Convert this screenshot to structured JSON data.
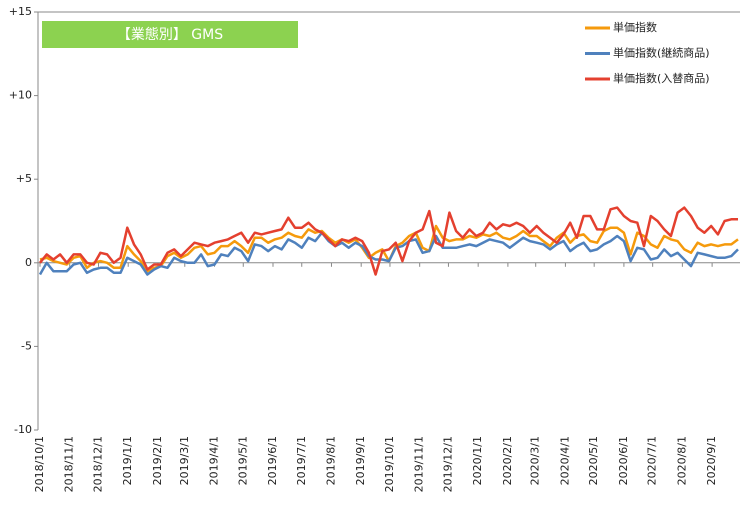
{
  "chart_data": {
    "type": "line",
    "title": "【業態別】 GMS",
    "x": [
      "2018/10/1",
      "2018/10/8",
      "2018/10/15",
      "2018/10/22",
      "2018/10/29",
      "2018/11/5",
      "2018/11/12",
      "2018/11/19",
      "2018/11/26",
      "2018/12/3",
      "2018/12/10",
      "2018/12/17",
      "2018/12/24",
      "2018/12/31",
      "2019/1/7",
      "2019/1/14",
      "2019/1/21",
      "2019/1/28",
      "2019/2/4",
      "2019/2/11",
      "2019/2/18",
      "2019/2/25",
      "2019/3/4",
      "2019/3/11",
      "2019/3/18",
      "2019/3/25",
      "2019/4/1",
      "2019/4/8",
      "2019/4/15",
      "2019/4/22",
      "2019/4/29",
      "2019/5/6",
      "2019/5/13",
      "2019/5/20",
      "2019/5/27",
      "2019/6/3",
      "2019/6/10",
      "2019/6/17",
      "2019/6/24",
      "2019/7/1",
      "2019/7/8",
      "2019/7/15",
      "2019/7/22",
      "2019/7/29",
      "2019/8/5",
      "2019/8/12",
      "2019/8/19",
      "2019/8/26",
      "2019/9/2",
      "2019/9/9",
      "2019/9/16",
      "2019/9/23",
      "2019/9/30",
      "2019/10/7",
      "2019/10/14",
      "2019/10/21",
      "2019/10/28",
      "2019/11/4",
      "2019/11/11",
      "2019/11/18",
      "2019/11/25",
      "2019/12/2",
      "2019/12/9",
      "2019/12/16",
      "2019/12/23",
      "2019/12/30",
      "2020/1/6",
      "2020/1/13",
      "2020/1/20",
      "2020/1/27",
      "2020/2/3",
      "2020/2/10",
      "2020/2/17",
      "2020/2/24",
      "2020/3/2",
      "2020/3/9",
      "2020/3/16",
      "2020/3/23",
      "2020/3/30",
      "2020/4/6",
      "2020/4/13",
      "2020/4/20",
      "2020/4/27",
      "2020/5/4",
      "2020/5/11",
      "2020/5/18",
      "2020/5/25",
      "2020/6/1",
      "2020/6/8",
      "2020/6/15",
      "2020/6/22",
      "2020/6/29",
      "2020/7/6",
      "2020/7/13",
      "2020/7/20",
      "2020/7/27",
      "2020/8/3",
      "2020/8/10",
      "2020/8/17",
      "2020/8/24",
      "2020/8/31",
      "2020/9/7",
      "2020/9/14",
      "2020/9/21",
      "2020/9/28"
    ],
    "xlim": [
      "2018/10/1",
      "2020/9/28"
    ],
    "xticks": [
      "2018/10/1",
      "2018/11/1",
      "2018/12/1",
      "2019/1/1",
      "2019/2/1",
      "2019/3/1",
      "2019/4/1",
      "2019/5/1",
      "2019/6/1",
      "2019/7/1",
      "2019/8/1",
      "2019/9/1",
      "2019/10/1",
      "2019/11/1",
      "2019/12/1",
      "2020/1/1",
      "2020/2/1",
      "2020/3/1",
      "2020/4/1",
      "2020/5/1",
      "2020/6/1",
      "2020/7/1",
      "2020/8/1",
      "2020/9/1"
    ],
    "ylim": [
      -10,
      15
    ],
    "yticks": [
      {
        "value": -10,
        "label": "-10"
      },
      {
        "value": -5,
        "label": "-5"
      },
      0,
      {
        "value": 5,
        "label": "+5"
      },
      {
        "value": 10,
        "label": "+10"
      },
      {
        "value": 15,
        "label": "+15"
      }
    ],
    "legend": "top-right",
    "series": [
      {
        "name": "単価指数",
        "color": "#f59a0c",
        "values": [
          0.2,
          0.3,
          0.1,
          0,
          -0.1,
          0.3,
          0.4,
          -0.3,
          0,
          0.1,
          0,
          -0.3,
          -0.3,
          1.0,
          0.5,
          0.1,
          -0.5,
          -0.3,
          -0.2,
          0.4,
          0.6,
          0.3,
          0.5,
          0.9,
          1.0,
          0.5,
          0.6,
          1.0,
          1.0,
          1.3,
          1.0,
          0.6,
          1.5,
          1.5,
          1.2,
          1.4,
          1.5,
          1.8,
          1.6,
          1.5,
          2.0,
          1.8,
          1.9,
          1.5,
          1.2,
          1.4,
          1.2,
          1.4,
          0.9,
          0.3,
          0.6,
          0.8,
          0.1,
          1.0,
          1.2,
          1.6,
          1.8,
          0.9,
          0.7,
          2.2,
          1.5,
          1.3,
          1.4,
          1.4,
          1.6,
          1.5,
          1.7,
          1.6,
          1.8,
          1.5,
          1.4,
          1.6,
          1.9,
          1.6,
          1.6,
          1.3,
          1.0,
          1.5,
          1.8,
          1.2,
          1.6,
          1.7,
          1.3,
          1.2,
          1.9,
          2.1,
          2.1,
          1.8,
          0.5,
          1.8,
          1.6,
          1.1,
          0.9,
          1.6,
          1.4,
          1.3,
          0.8,
          0.6,
          1.2,
          1.0,
          1.1,
          1.0,
          1.1,
          1.1,
          1.4
        ]
      },
      {
        "name": "単価指数(継続商品)",
        "color": "#4f81bd",
        "values": [
          -0.7,
          0,
          -0.5,
          -0.5,
          -0.5,
          -0.1,
          0,
          -0.6,
          -0.4,
          -0.3,
          -0.3,
          -0.6,
          -0.6,
          0.3,
          0.1,
          -0.1,
          -0.7,
          -0.4,
          -0.2,
          -0.3,
          0.3,
          0.1,
          0,
          0,
          0.5,
          -0.2,
          -0.1,
          0.5,
          0.4,
          0.9,
          0.7,
          0.1,
          1.1,
          1.0,
          0.7,
          1.0,
          0.8,
          1.4,
          1.2,
          0.9,
          1.5,
          1.3,
          1.8,
          1.3,
          1.0,
          1.2,
          0.9,
          1.2,
          1.0,
          0.4,
          0.2,
          0.2,
          0.1,
          0.9,
          1.0,
          1.3,
          1.4,
          0.6,
          0.7,
          1.6,
          0.9,
          0.9,
          0.9,
          1.0,
          1.1,
          1.0,
          1.2,
          1.4,
          1.3,
          1.2,
          0.9,
          1.2,
          1.5,
          1.3,
          1.2,
          1.1,
          0.8,
          1.1,
          1.3,
          0.7,
          1.0,
          1.2,
          0.7,
          0.8,
          1.1,
          1.3,
          1.6,
          1.3,
          0.1,
          0.9,
          0.8,
          0.2,
          0.3,
          0.8,
          0.4,
          0.6,
          0.2,
          -0.2,
          0.6,
          0.5,
          0.4,
          0.3,
          0.3,
          0.4,
          0.8
        ]
      },
      {
        "name": "単価指数(入替商品)",
        "color": "#e4402f",
        "values": [
          0,
          0.5,
          0.2,
          0.5,
          0,
          0.5,
          0.5,
          0,
          -0.1,
          0.6,
          0.5,
          0,
          0.3,
          2.1,
          1.1,
          0.5,
          -0.4,
          -0.1,
          -0.1,
          0.6,
          0.8,
          0.4,
          0.8,
          1.2,
          1.1,
          1.0,
          1.2,
          1.3,
          1.4,
          1.6,
          1.8,
          1.2,
          1.8,
          1.7,
          1.8,
          1.9,
          2.0,
          2.7,
          2.1,
          2.1,
          2.4,
          2.0,
          1.8,
          1.4,
          1.0,
          1.4,
          1.3,
          1.5,
          1.3,
          0.6,
          -0.7,
          0.7,
          0.8,
          1.2,
          0.1,
          1.3,
          1.8,
          2.0,
          3.1,
          1.2,
          1.0,
          3.0,
          1.9,
          1.5,
          2.0,
          1.6,
          1.8,
          2.4,
          2.0,
          2.3,
          2.2,
          2.4,
          2.2,
          1.8,
          2.2,
          1.8,
          1.5,
          1.2,
          1.7,
          2.4,
          1.5,
          2.8,
          2.8,
          2.0,
          2.0,
          3.2,
          3.3,
          2.8,
          2.5,
          2.4,
          1.0,
          2.8,
          2.5,
          2.0,
          1.6,
          3.0,
          3.3,
          2.8,
          2.1,
          1.8,
          2.2,
          1.7,
          2.5,
          2.6,
          2.6
        ]
      }
    ]
  }
}
